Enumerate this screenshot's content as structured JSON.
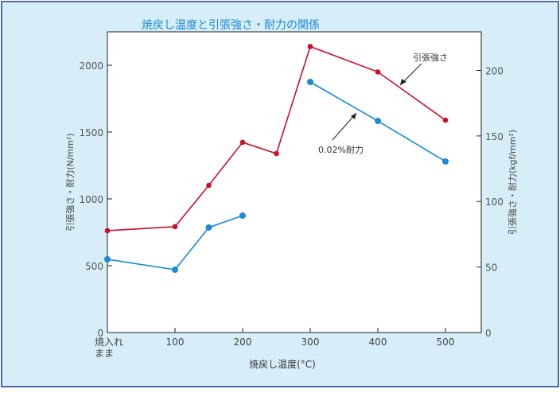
{
  "chart_data": {
    "type": "line",
    "title": "焼戻し温度と引張強さ・耐力の関係",
    "xlabel": "焼戻し温度(°C)",
    "ylabel": "引張強さ・耐力(N/mm²)",
    "ylabel_right": "引張強さ・耐力(kgf/mm²)",
    "x_ticks": [
      {
        "value": 0,
        "label": "焼入れ",
        "label2": "まま"
      },
      {
        "value": 100,
        "label": "100"
      },
      {
        "value": 200,
        "label": "200"
      },
      {
        "value": 300,
        "label": "300"
      },
      {
        "value": 400,
        "label": "400"
      },
      {
        "value": 500,
        "label": "500"
      }
    ],
    "y_ticks": [
      "0",
      "500",
      "1000",
      "1500",
      "2000"
    ],
    "y_right_ticks": [
      "0",
      "50",
      "100",
      "150",
      "200"
    ],
    "xlim": [
      0,
      553
    ],
    "ylim": [
      0,
      2250
    ],
    "grid": false,
    "series": [
      {
        "name": "引張強さ",
        "color": "#c8102e",
        "segments": [
          [
            [
              0,
              762
            ],
            [
              100,
              792
            ],
            [
              150,
              1101
            ],
            [
              200,
              1423
            ],
            [
              250,
              1339
            ],
            [
              300,
              2140
            ],
            [
              400,
              1950
            ],
            [
              500,
              1589
            ]
          ]
        ]
      },
      {
        "name": "0.02%耐力",
        "color": "#1a8ad4",
        "segments": [
          [
            [
              0,
              548
            ],
            [
              100,
              470
            ],
            [
              150,
              786
            ],
            [
              200,
              875
            ]
          ],
          [
            [
              300,
              1875
            ],
            [
              400,
              1583
            ],
            [
              500,
              1280
            ]
          ]
        ]
      }
    ],
    "annotations": [
      {
        "text": "引張強さ",
        "series": 0
      },
      {
        "text": "0.02%耐力",
        "series": 1
      }
    ],
    "colors": {
      "background": "#d7eef9",
      "frame": "#1f3f8a",
      "title": "#1a8ad4"
    }
  }
}
